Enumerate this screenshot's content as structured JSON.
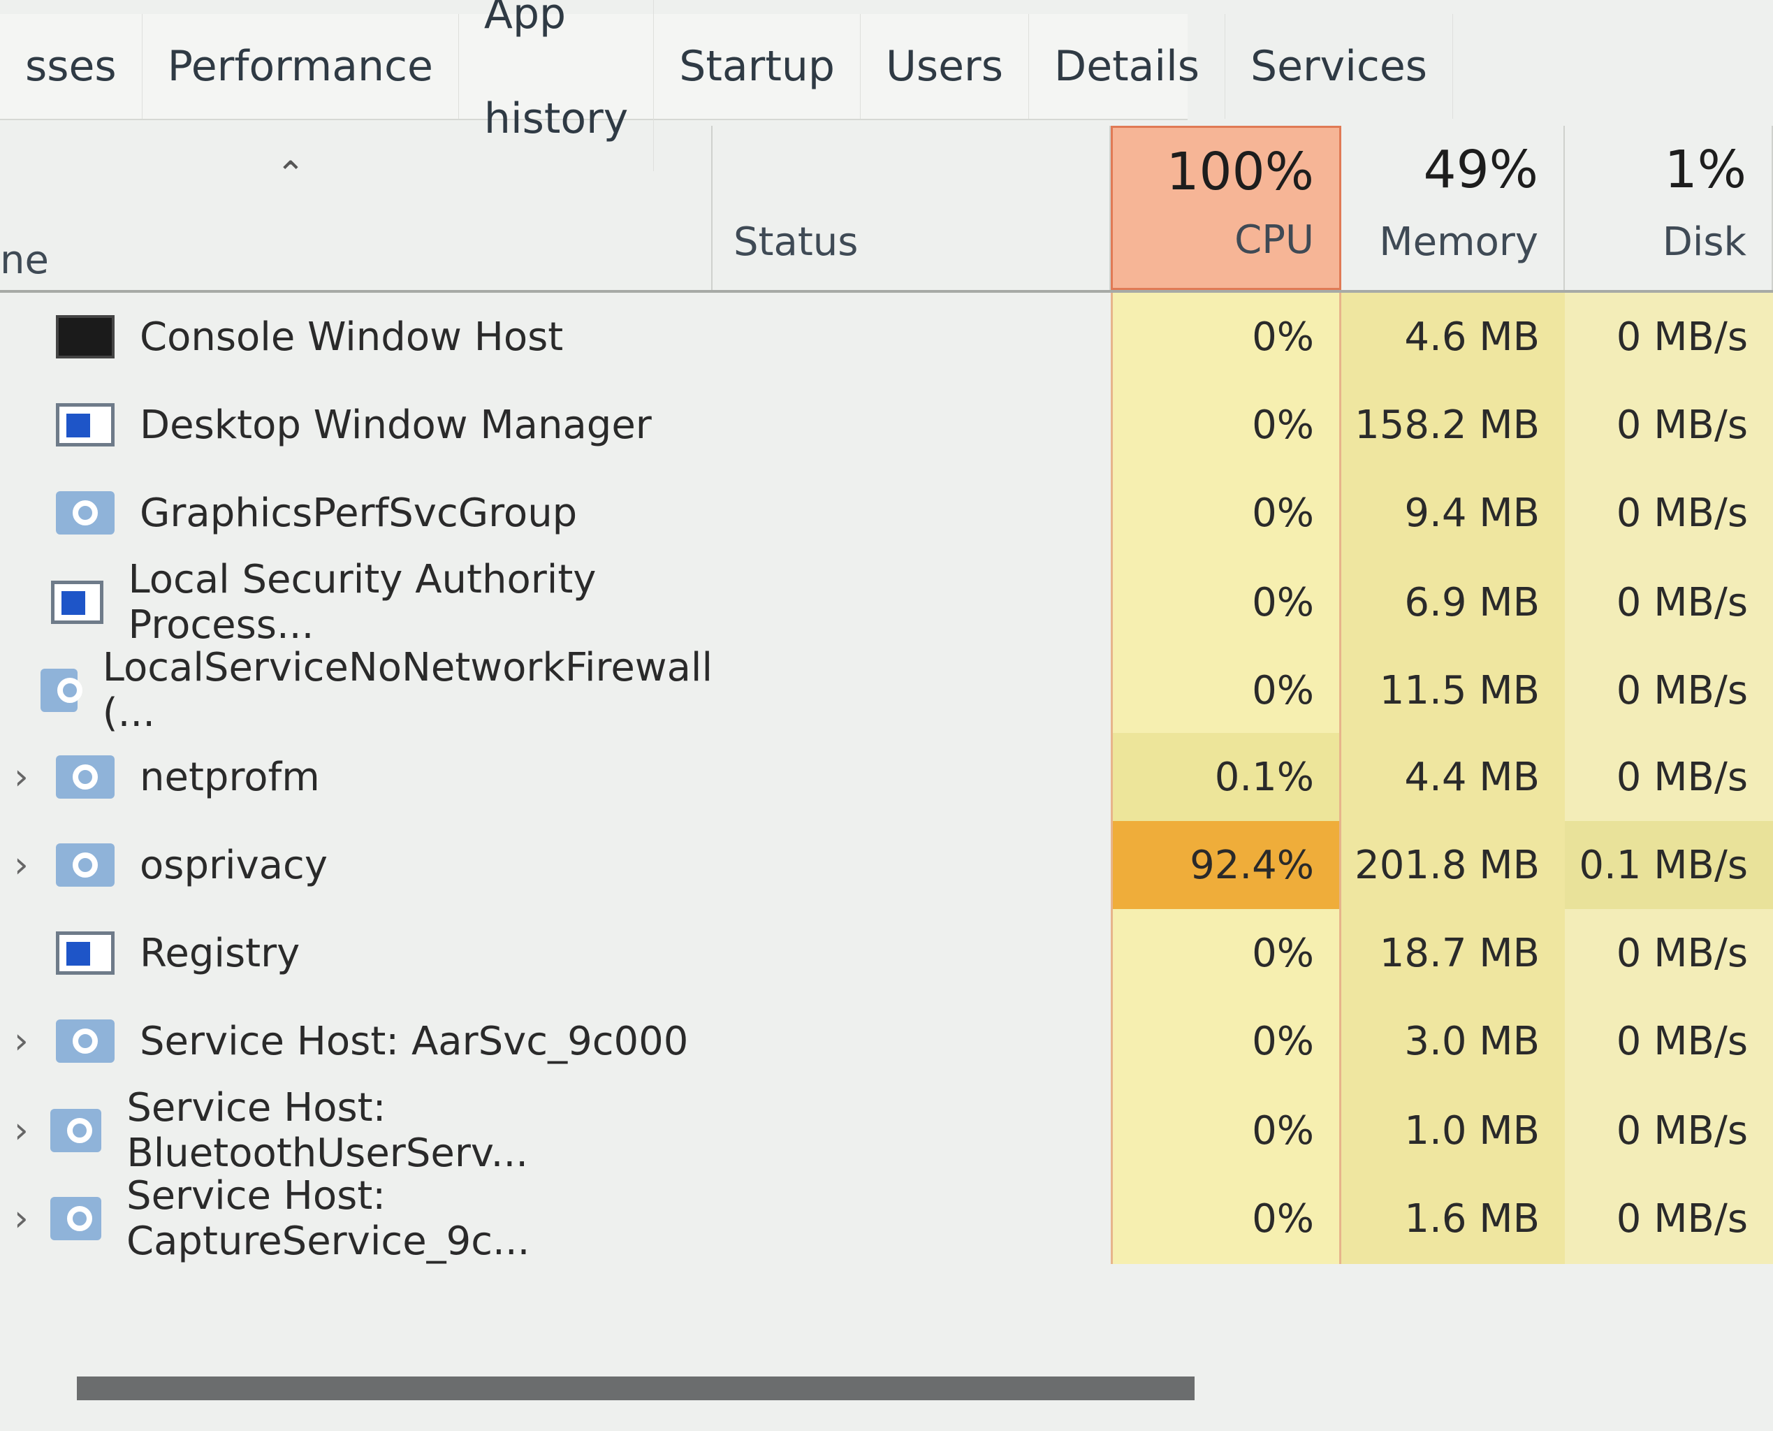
{
  "tabs": [
    "sses",
    "Performance",
    "App history",
    "Startup",
    "Users",
    "Details",
    "Services"
  ],
  "header": {
    "name": "ne",
    "status": "Status",
    "cpu": {
      "percent": "100%",
      "label": "CPU"
    },
    "memory": {
      "percent": "49%",
      "label": "Memory"
    },
    "disk": {
      "percent": "1%",
      "label": "Disk"
    }
  },
  "rows": [
    {
      "name": "Console Window Host",
      "cpu": "0%",
      "memory": "4.6 MB",
      "disk": "0 MB/s"
    },
    {
      "name": "Desktop Window Manager",
      "cpu": "0%",
      "memory": "158.2 MB",
      "disk": "0 MB/s"
    },
    {
      "name": "GraphicsPerfSvcGroup",
      "cpu": "0%",
      "memory": "9.4 MB",
      "disk": "0 MB/s"
    },
    {
      "name": "Local Security Authority Process...",
      "cpu": "0%",
      "memory": "6.9 MB",
      "disk": "0 MB/s"
    },
    {
      "name": "LocalServiceNoNetworkFirewall (...",
      "cpu": "0%",
      "memory": "11.5 MB",
      "disk": "0 MB/s"
    },
    {
      "name": "netprofm",
      "cpu": "0.1%",
      "memory": "4.4 MB",
      "disk": "0 MB/s"
    },
    {
      "name": "osprivacy",
      "cpu": "92.4%",
      "memory": "201.8 MB",
      "disk": "0.1 MB/s"
    },
    {
      "name": "Registry",
      "cpu": "0%",
      "memory": "18.7 MB",
      "disk": "0 MB/s"
    },
    {
      "name": "Service Host: AarSvc_9c000",
      "cpu": "0%",
      "memory": "3.0 MB",
      "disk": "0 MB/s"
    },
    {
      "name": "Service Host: BluetoothUserServ...",
      "cpu": "0%",
      "memory": "1.0 MB",
      "disk": "0 MB/s"
    },
    {
      "name": "Service Host: CaptureService_9c...",
      "cpu": "0%",
      "memory": "1.6 MB",
      "disk": "0 MB/s"
    }
  ]
}
